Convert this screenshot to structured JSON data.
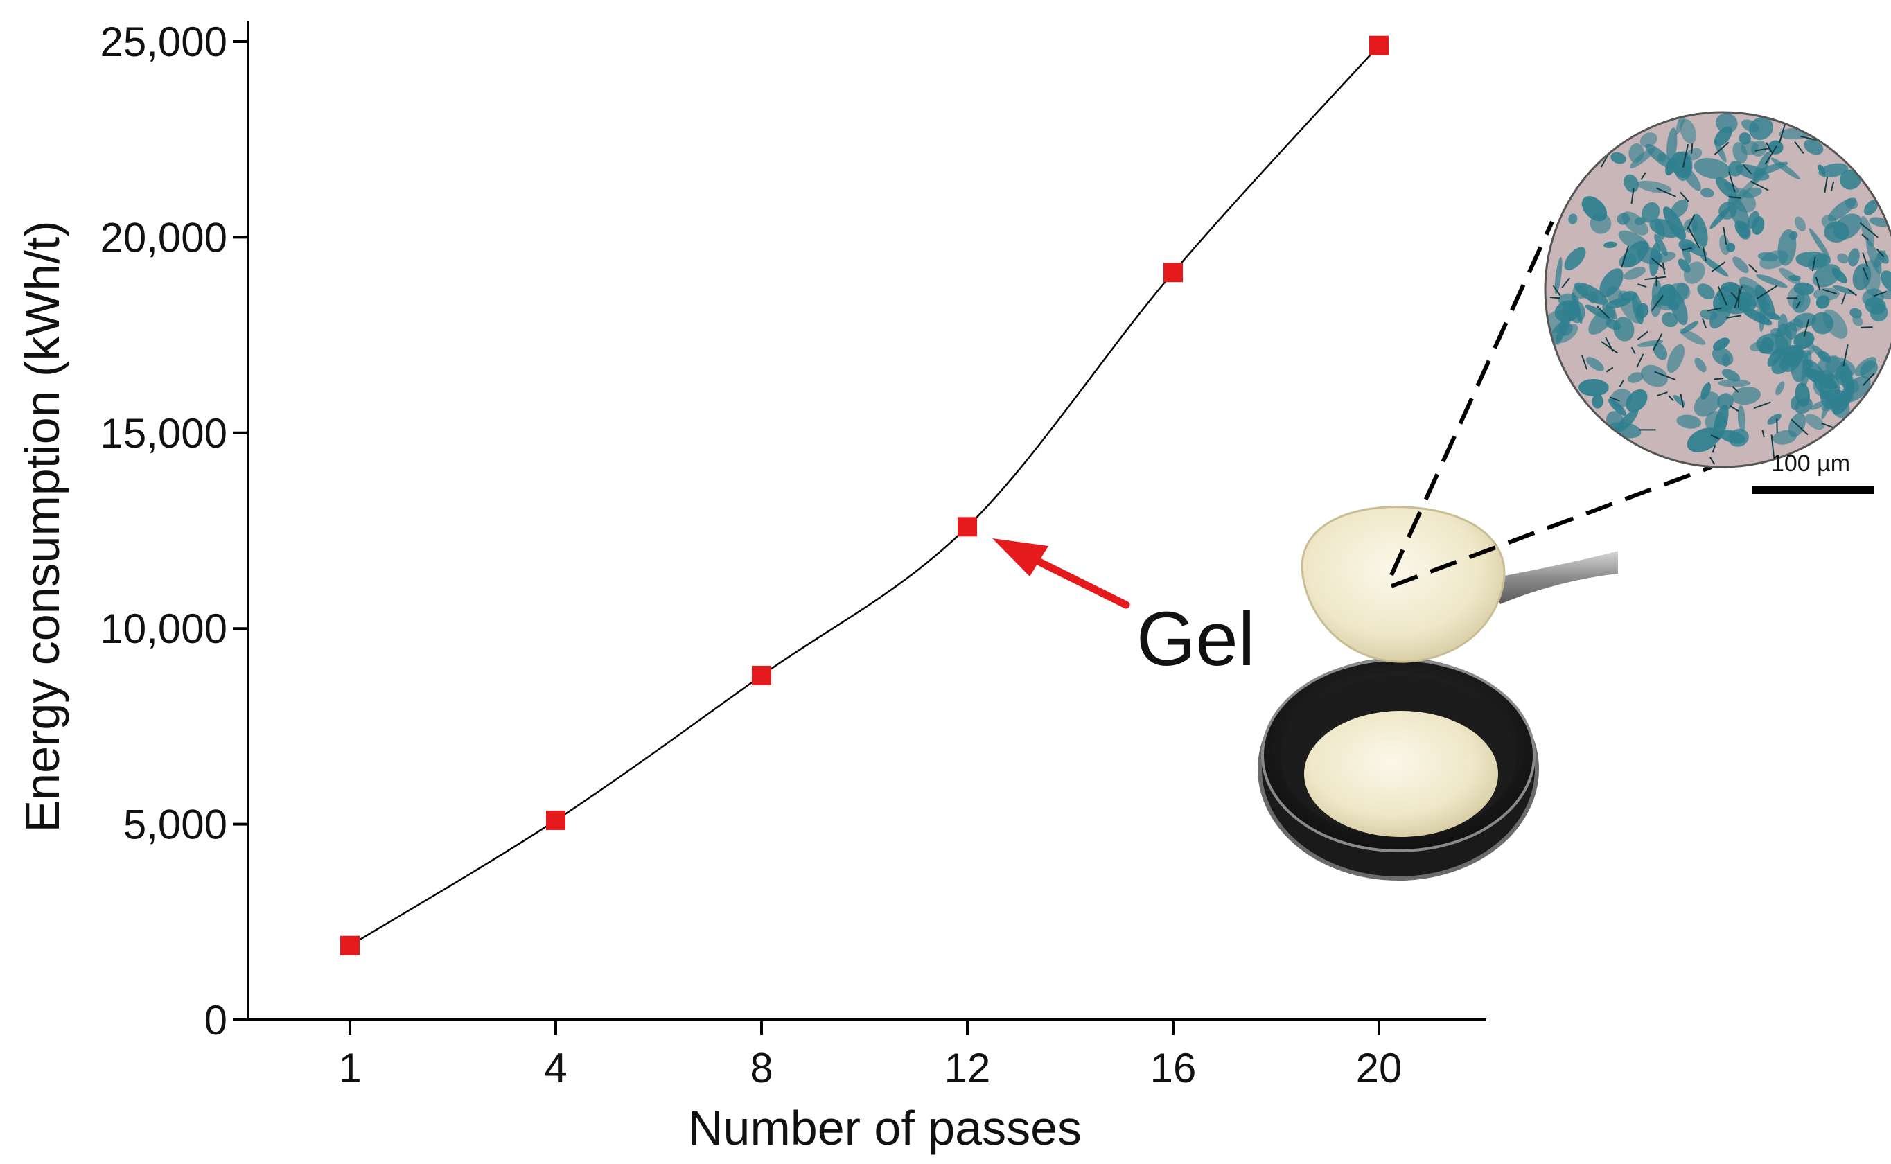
{
  "chart_data": {
    "type": "line",
    "title": "",
    "xlabel": "Number of passes",
    "ylabel": "Energy consumption (kWh/t)",
    "x": [
      1,
      4,
      8,
      12,
      16,
      20
    ],
    "x_tick_labels": [
      "1",
      "4",
      "8",
      "12",
      "16",
      "20"
    ],
    "ylim": [
      0,
      25000
    ],
    "y_ticks": [
      0,
      5000,
      10000,
      15000,
      20000,
      25000
    ],
    "y_tick_labels": [
      "0",
      "5,000",
      "10,000",
      "15,000",
      "20,000",
      "25,000"
    ],
    "series": [
      {
        "values": [
          1900,
          5100,
          8800,
          12600,
          19100,
          24900
        ]
      }
    ],
    "marker": "square",
    "marker_color": "#e41a1c",
    "line_color": "#000000",
    "grid": false,
    "annotations": [
      {
        "text": "Gel",
        "points_to_x": 12,
        "arrow_color": "#e41a1c"
      }
    ]
  },
  "inset": {
    "scale_bar_label": "100 µm",
    "micrograph_color": "#2e7f8f",
    "gel_color": "#f3edd3"
  }
}
